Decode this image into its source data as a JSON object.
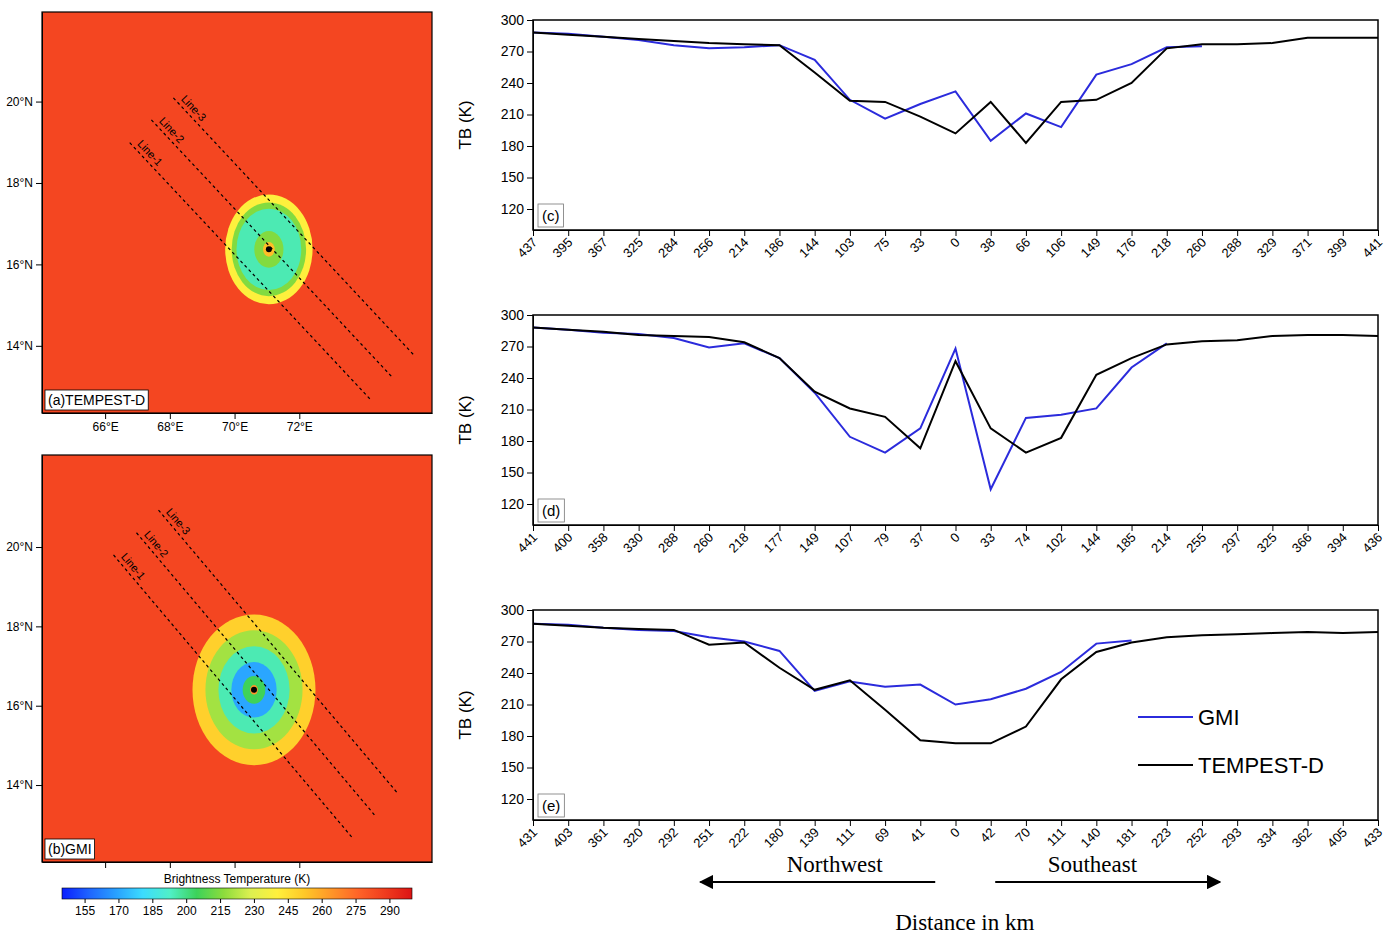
{
  "chart_data": [
    {
      "type": "map",
      "title": "(a)TEMPEST-D",
      "xlim": [
        64.05,
        76.1
      ],
      "ylim": [
        12.35,
        22.2
      ],
      "xticks": [
        {
          "value": 66,
          "label": "66°E"
        },
        {
          "value": 68,
          "label": "68°E"
        },
        {
          "value": 70,
          "label": "70°E"
        },
        {
          "value": 72,
          "label": "72°E"
        }
      ],
      "yticks": [
        {
          "value": 14,
          "label": "14°N"
        },
        {
          "value": 16,
          "label": "16°N"
        },
        {
          "value": 18,
          "label": "18°N"
        },
        {
          "value": 20,
          "label": "20°N"
        }
      ],
      "background_tb": 285,
      "center": {
        "lon": 71.06,
        "lat": 16.37
      },
      "rings": [
        {
          "radius": 1.35,
          "tb": 240
        },
        {
          "radius": 1.15,
          "tb": 215
        },
        {
          "radius": 1.0,
          "tb": 195
        },
        {
          "radius": 0.45,
          "tb": 215
        },
        {
          "radius": 0.18,
          "tb": 255
        }
      ],
      "lines": [
        {
          "name": "Line-1",
          "lon": [
            66.76,
            74.19
          ],
          "lat": [
            18.99,
            12.69
          ]
        },
        {
          "name": "Line-2",
          "lon": [
            67.43,
            74.87
          ],
          "lat": [
            19.55,
            13.23
          ]
        },
        {
          "name": "Line-3",
          "lon": [
            68.11,
            75.52
          ],
          "lat": [
            20.09,
            13.79
          ]
        }
      ]
    },
    {
      "type": "map",
      "title": "(b)GMI",
      "xlim": [
        64.05,
        76.1
      ],
      "ylim": [
        12.06,
        22.32
      ],
      "xticks": [
        66,
        68,
        70,
        72
      ],
      "yticks": [
        {
          "value": 14,
          "label": "14°N"
        },
        {
          "value": 16,
          "label": "16°N"
        },
        {
          "value": 18,
          "label": "18°N"
        },
        {
          "value": 20,
          "label": "20°N"
        }
      ],
      "tick_labels": "y",
      "background_tb": 285,
      "center": {
        "lon": 70.6,
        "lat": 16.4
      },
      "rings": [
        {
          "radius": 1.9,
          "tb": 250
        },
        {
          "radius": 1.5,
          "tb": 220
        },
        {
          "radius": 1.1,
          "tb": 195
        },
        {
          "radius": 0.7,
          "tb": 170
        },
        {
          "radius": 0.35,
          "tb": 205
        },
        {
          "radius": 0.12,
          "tb": 265
        }
      ],
      "lines": [
        {
          "name": "Line-1",
          "lon": [
            66.26,
            73.64
          ],
          "lat": [
            19.8,
            12.67
          ]
        },
        {
          "name": "Line-2",
          "lon": [
            66.97,
            74.32
          ],
          "lat": [
            20.36,
            13.25
          ]
        },
        {
          "name": "Line-3",
          "lon": [
            67.65,
            75.02
          ],
          "lat": [
            20.93,
            13.81
          ]
        }
      ],
      "colorbar": {
        "title": "Brightness Temperature (K)",
        "range": [
          145,
          300
        ],
        "ticks": [
          155,
          170,
          185,
          200,
          215,
          230,
          245,
          260,
          275,
          290
        ],
        "colors": [
          "#0a1eff",
          "#1e64ff",
          "#28a0ff",
          "#3cdcff",
          "#50f0c8",
          "#3cd25a",
          "#8cdc3c",
          "#dcf050",
          "#fff03c",
          "#ffc828",
          "#ff9628",
          "#ff6428",
          "#f03c1e",
          "#dc1414"
        ]
      }
    },
    {
      "type": "line",
      "title": "(c)",
      "ylabel": "TB (K)",
      "categories": [
        "437",
        "395",
        "367",
        "325",
        "284",
        "256",
        "214",
        "186",
        "144",
        "103",
        "75",
        "33",
        "0",
        "38",
        "66",
        "106",
        "149",
        "176",
        "218",
        "260",
        "288",
        "329",
        "371",
        "399",
        "441"
      ],
      "ylim": [
        100,
        300
      ],
      "yticks": [
        120,
        150,
        180,
        210,
        240,
        270,
        300
      ],
      "series": [
        {
          "name": "GMI",
          "color": "#2b2bdc",
          "values": [
            288,
            287,
            284,
            281,
            276,
            273,
            274,
            276,
            262,
            224,
            206,
            220,
            232,
            185,
            211,
            198,
            248,
            258,
            274,
            275,
            null,
            null,
            null,
            null,
            null
          ]
        },
        {
          "name": "TEMPEST-D",
          "color": "#000000",
          "values": [
            288,
            286,
            284,
            282,
            280,
            278,
            277,
            276,
            250,
            223,
            222,
            208,
            192,
            222,
            183,
            222,
            224,
            240,
            273,
            277,
            277,
            278,
            283,
            283,
            283
          ]
        }
      ]
    },
    {
      "type": "line",
      "title": "(d)",
      "ylabel": "TB (K)",
      "categories": [
        "441",
        "400",
        "358",
        "330",
        "288",
        "260",
        "218",
        "177",
        "149",
        "107",
        "79",
        "37",
        "0",
        "33",
        "74",
        "102",
        "144",
        "185",
        "214",
        "255",
        "297",
        "325",
        "366",
        "394",
        "436"
      ],
      "ylim": [
        100,
        300
      ],
      "yticks": [
        120,
        150,
        180,
        210,
        240,
        270,
        300
      ],
      "series": [
        {
          "name": "GMI",
          "color": "#2b2bdc",
          "values": [
            288,
            286,
            283,
            282,
            278,
            269,
            273,
            259,
            226,
            184,
            169,
            192,
            268,
            134,
            202,
            205,
            211,
            250,
            273,
            null,
            null,
            null,
            null,
            null,
            null
          ]
        },
        {
          "name": "TEMPEST-D",
          "color": "#000000",
          "values": [
            288,
            286,
            284,
            281,
            280,
            279,
            274,
            259,
            227,
            211,
            203,
            173,
            256,
            192,
            169,
            183,
            243,
            259,
            272,
            275,
            276,
            280,
            281,
            281,
            280
          ]
        }
      ]
    },
    {
      "type": "line",
      "title": "(e)",
      "ylabel": "TB (K)",
      "xlabel": "Distance in km",
      "annotations": [
        "Northwest",
        "Southeast"
      ],
      "legend": "lower right",
      "categories": [
        "431",
        "403",
        "361",
        "320",
        "292",
        "251",
        "222",
        "180",
        "139",
        "111",
        "69",
        "41",
        "0",
        "42",
        "70",
        "111",
        "140",
        "181",
        "223",
        "252",
        "293",
        "334",
        "362",
        "405",
        "433"
      ],
      "ylim": [
        100,
        300
      ],
      "yticks": [
        120,
        150,
        180,
        210,
        240,
        270,
        300
      ],
      "series": [
        {
          "name": "GMI",
          "color": "#2b2bdc",
          "values": [
            287,
            286,
            283,
            281,
            280,
            274,
            270,
            261,
            223,
            232,
            227,
            229,
            210,
            215,
            225,
            241,
            268,
            271,
            null,
            null,
            null,
            null,
            null,
            null,
            null
          ]
        },
        {
          "name": "TEMPEST-D",
          "color": "#000000",
          "values": [
            287,
            285,
            283,
            282,
            281,
            267,
            269,
            245,
            224,
            233,
            205,
            176,
            173,
            173,
            189,
            234,
            260,
            269,
            274,
            276,
            277,
            278,
            279,
            278,
            279
          ]
        }
      ]
    }
  ]
}
